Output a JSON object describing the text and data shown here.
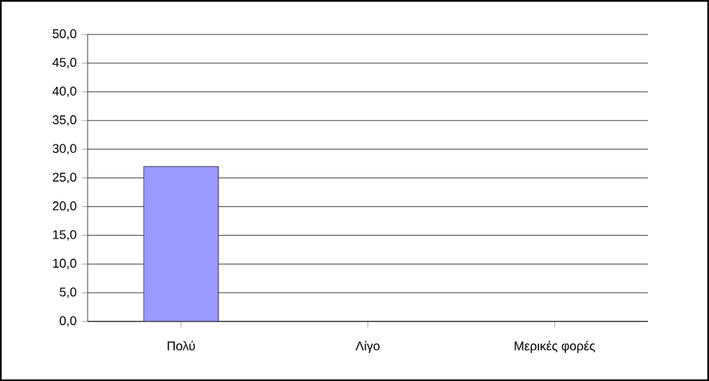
{
  "chart_data": {
    "type": "bar",
    "categories": [
      "Πολύ",
      "Λίγο",
      "Μερικές φορές"
    ],
    "values": [
      27,
      null,
      null
    ],
    "color": "#9999ff",
    "ylim": [
      0,
      50
    ],
    "yticks": [
      {
        "value": 0,
        "label": "0,0"
      },
      {
        "value": 5,
        "label": "5,0"
      },
      {
        "value": 10,
        "label": "10,0"
      },
      {
        "value": 15,
        "label": "15,0"
      },
      {
        "value": 20,
        "label": "20,0"
      },
      {
        "value": 25,
        "label": "25,0"
      },
      {
        "value": 30,
        "label": "30,0"
      },
      {
        "value": 35,
        "label": "35,0"
      },
      {
        "value": 40,
        "label": "40,0"
      },
      {
        "value": 45,
        "label": "45,0"
      },
      {
        "value": 50,
        "label": "50,0"
      }
    ],
    "grid": "y"
  }
}
